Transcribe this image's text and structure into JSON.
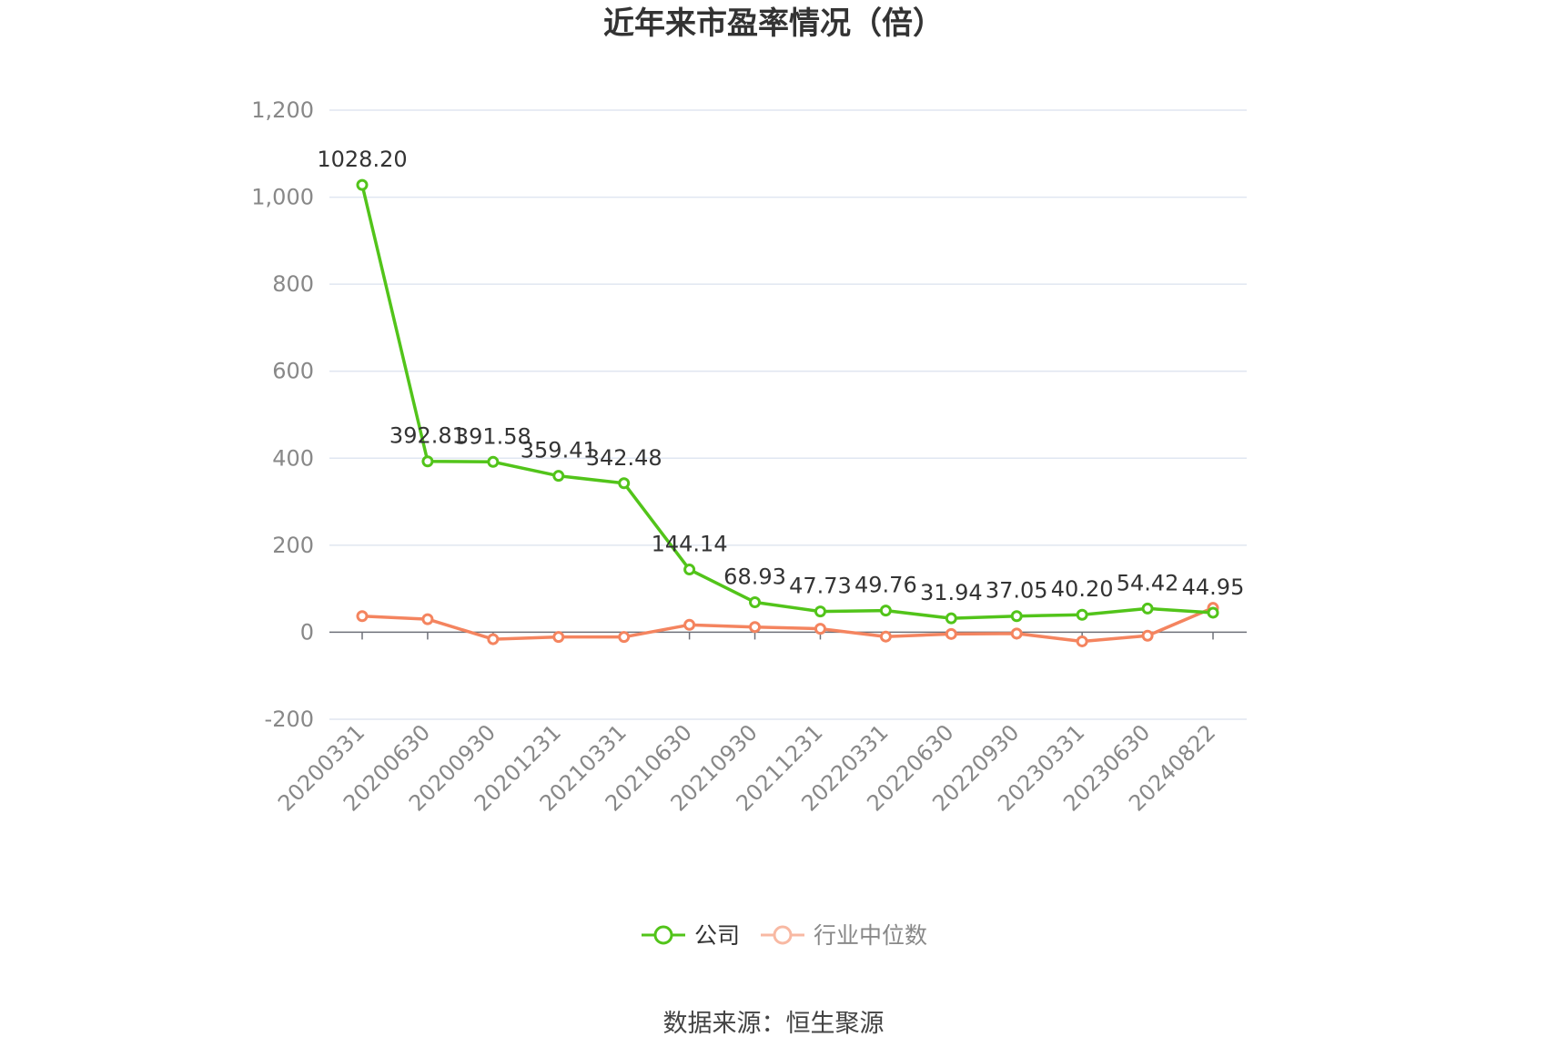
{
  "chart_data": {
    "type": "line",
    "title": "近年来市盈率情况（倍）",
    "categories": [
      "20200331",
      "20200630",
      "20200930",
      "20201231",
      "20210331",
      "20210630",
      "20210930",
      "20211231",
      "20220331",
      "20220630",
      "20220930",
      "20230331",
      "20230630",
      "20240822"
    ],
    "series": [
      {
        "name": "公司",
        "color": "#52c41a",
        "values": [
          1028.2,
          392.81,
          391.58,
          359.41,
          342.48,
          144.14,
          68.93,
          47.73,
          49.76,
          31.94,
          37.05,
          40.2,
          54.42,
          44.95
        ],
        "labels": [
          "1028.20",
          "392.81",
          "391.58",
          "359.41",
          "342.48",
          "144.14",
          "68.93",
          "47.73",
          "49.76",
          "31.94",
          "37.05",
          "40.20",
          "54.42",
          "44.95"
        ]
      },
      {
        "name": "行业中位数",
        "color": "#f4845f",
        "values": [
          37,
          30,
          -16,
          -11,
          -11,
          17,
          12,
          8,
          -10,
          -4,
          -3,
          -21,
          -8,
          56
        ]
      }
    ],
    "yticks": [
      "1,200",
      "1,000",
      "800",
      "600",
      "400",
      "200",
      "0",
      "-200"
    ],
    "ytick_values": [
      1200,
      1000,
      800,
      600,
      400,
      200,
      0,
      -200
    ],
    "ylim": [
      -200,
      1200
    ],
    "grid": true,
    "legend_position": "bottom-center",
    "source": "数据来源：恒生聚源"
  }
}
